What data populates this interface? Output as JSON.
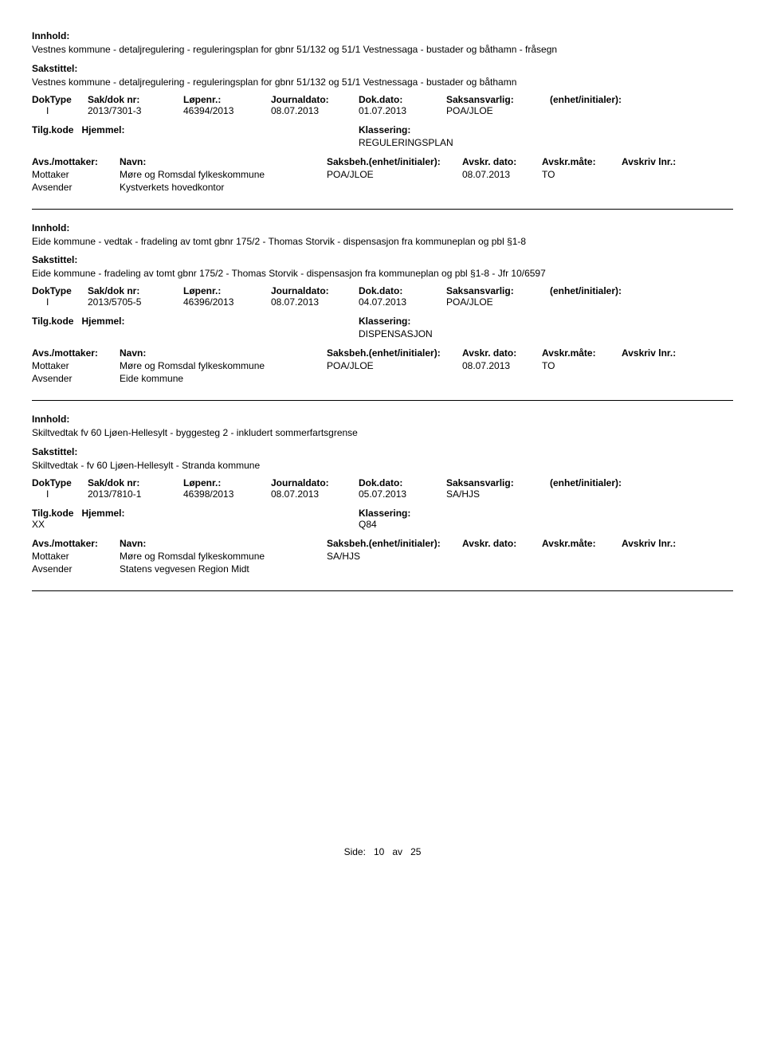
{
  "labels": {
    "innhold": "Innhold:",
    "sakstittel": "Sakstittel:",
    "doktype": "DokType",
    "sakdok": "Sak/dok nr:",
    "lopenr": "Løpenr.:",
    "journaldato": "Journaldato:",
    "dokdato": "Dok.dato:",
    "saksansvarlig": "Saksansvarlig:",
    "enhet": "(enhet/initialer):",
    "tilgkode": "Tilg.kode",
    "hjemmel": "Hjemmel:",
    "klassering": "Klassering:",
    "avsmottaker": "Avs./mottaker:",
    "navn": "Navn:",
    "saksbeh": "Saksbeh.(enhet/initialer):",
    "avskrdato": "Avskr. dato:",
    "avskrmate": "Avskr.måte:",
    "avskrivlnr": "Avskriv lnr.:",
    "mottaker": "Mottaker",
    "avsender": "Avsender"
  },
  "records": [
    {
      "innhold": "Vestnes kommune - detaljregulering - reguleringsplan for gbnr 51/132 og 51/1 Vestnessaga - bustader og båthamn - fråsegn",
      "sakstittel": "Vestnes kommune - detaljregulering - reguleringsplan for gbnr 51/132 og 51/1 Vestnessaga - bustader og båthamn",
      "doktype": "I",
      "sakdok": "2013/7301-3",
      "lopenr": "46394/2013",
      "journaldato": "08.07.2013",
      "dokdato": "01.07.2013",
      "saksansvarlig": "POA/JLOE",
      "tilgkode": "",
      "klassering": "REGULERINGSPLAN",
      "mottaker_navn": "Møre og Romsdal fylkeskommune",
      "saksbeh_val": "POA/JLOE",
      "avskrdato": "08.07.2013",
      "avskrmate": "TO",
      "avsender_val": "Kystverkets hovedkontor"
    },
    {
      "innhold": "Eide kommune - vedtak - fradeling av tomt gbnr 175/2 - Thomas Storvik - dispensasjon fra kommuneplan og pbl §1-8",
      "sakstittel": "Eide kommune - fradeling av tomt gbnr 175/2 - Thomas Storvik - dispensasjon fra kommuneplan og pbl §1-8 - Jfr 10/6597",
      "doktype": "I",
      "sakdok": "2013/5705-5",
      "lopenr": "46396/2013",
      "journaldato": "08.07.2013",
      "dokdato": "04.07.2013",
      "saksansvarlig": "POA/JLOE",
      "tilgkode": "",
      "klassering": "DISPENSASJON",
      "mottaker_navn": "Møre og Romsdal fylkeskommune",
      "saksbeh_val": "POA/JLOE",
      "avskrdato": "08.07.2013",
      "avskrmate": "TO",
      "avsender_val": "Eide kommune"
    },
    {
      "innhold": "Skiltvedtak fv 60 Ljøen-Hellesylt - byggesteg 2 - inkludert sommerfartsgrense",
      "sakstittel": "Skiltvedtak - fv 60 Ljøen-Hellesylt - Stranda kommune",
      "doktype": "I",
      "sakdok": "2013/7810-1",
      "lopenr": "46398/2013",
      "journaldato": "08.07.2013",
      "dokdato": "05.07.2013",
      "saksansvarlig": "SA/HJS",
      "tilgkode": "XX",
      "klassering": "Q84",
      "mottaker_navn": "Møre og Romsdal fylkeskommune",
      "saksbeh_val": "SA/HJS",
      "avskrdato": "",
      "avskrmate": "",
      "avsender_val": "Statens vegvesen Region Midt"
    }
  ],
  "footer": {
    "side_label": "Side:",
    "page_current": "10",
    "page_sep": "av",
    "page_total": "25"
  }
}
